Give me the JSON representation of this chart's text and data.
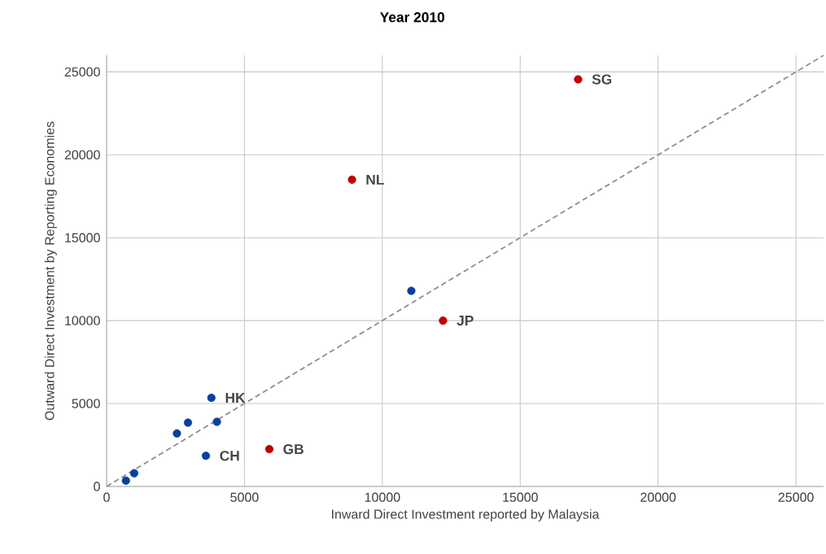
{
  "chart_data": {
    "type": "scatter",
    "title": "Year 2010",
    "xlabel": "Inward Direct Investment reported by Malaysia",
    "ylabel": "Outward Direct Investment by Reporting Economies",
    "xlim": [
      0,
      26000
    ],
    "ylim": [
      0,
      26000
    ],
    "xticks": [
      0,
      5000,
      10000,
      15000,
      20000,
      25000
    ],
    "yticks": [
      0,
      5000,
      10000,
      15000,
      20000,
      25000
    ],
    "grid": true,
    "marker": "circle",
    "series": [
      {
        "color": "#c00000",
        "x": [
          17100,
          8900,
          12200,
          5900
        ],
        "values": [
          24550,
          18500,
          10000,
          2250
        ]
      },
      {
        "color": "#0b3f9f",
        "x": [
          11050,
          3800,
          4000,
          2950,
          2550,
          3600,
          1000,
          700
        ],
        "values": [
          11800,
          5350,
          3900,
          3850,
          3200,
          1850,
          800,
          350
        ]
      },
      {
        "type": "line",
        "line_style": "dashed",
        "marker": "none",
        "color": "#8c8c8c",
        "x": [
          0,
          26000
        ],
        "values": [
          0,
          26000
        ]
      }
    ],
    "annotations": [
      {
        "text": "SG",
        "x": 17100,
        "y": 24550
      },
      {
        "text": "NL",
        "x": 8900,
        "y": 18500
      },
      {
        "text": "JP",
        "x": 12200,
        "y": 10000
      },
      {
        "text": "GB",
        "x": 5900,
        "y": 2250
      },
      {
        "text": "HK",
        "x": 3800,
        "y": 5350
      },
      {
        "text": "CH",
        "x": 3600,
        "y": 1850
      }
    ]
  }
}
